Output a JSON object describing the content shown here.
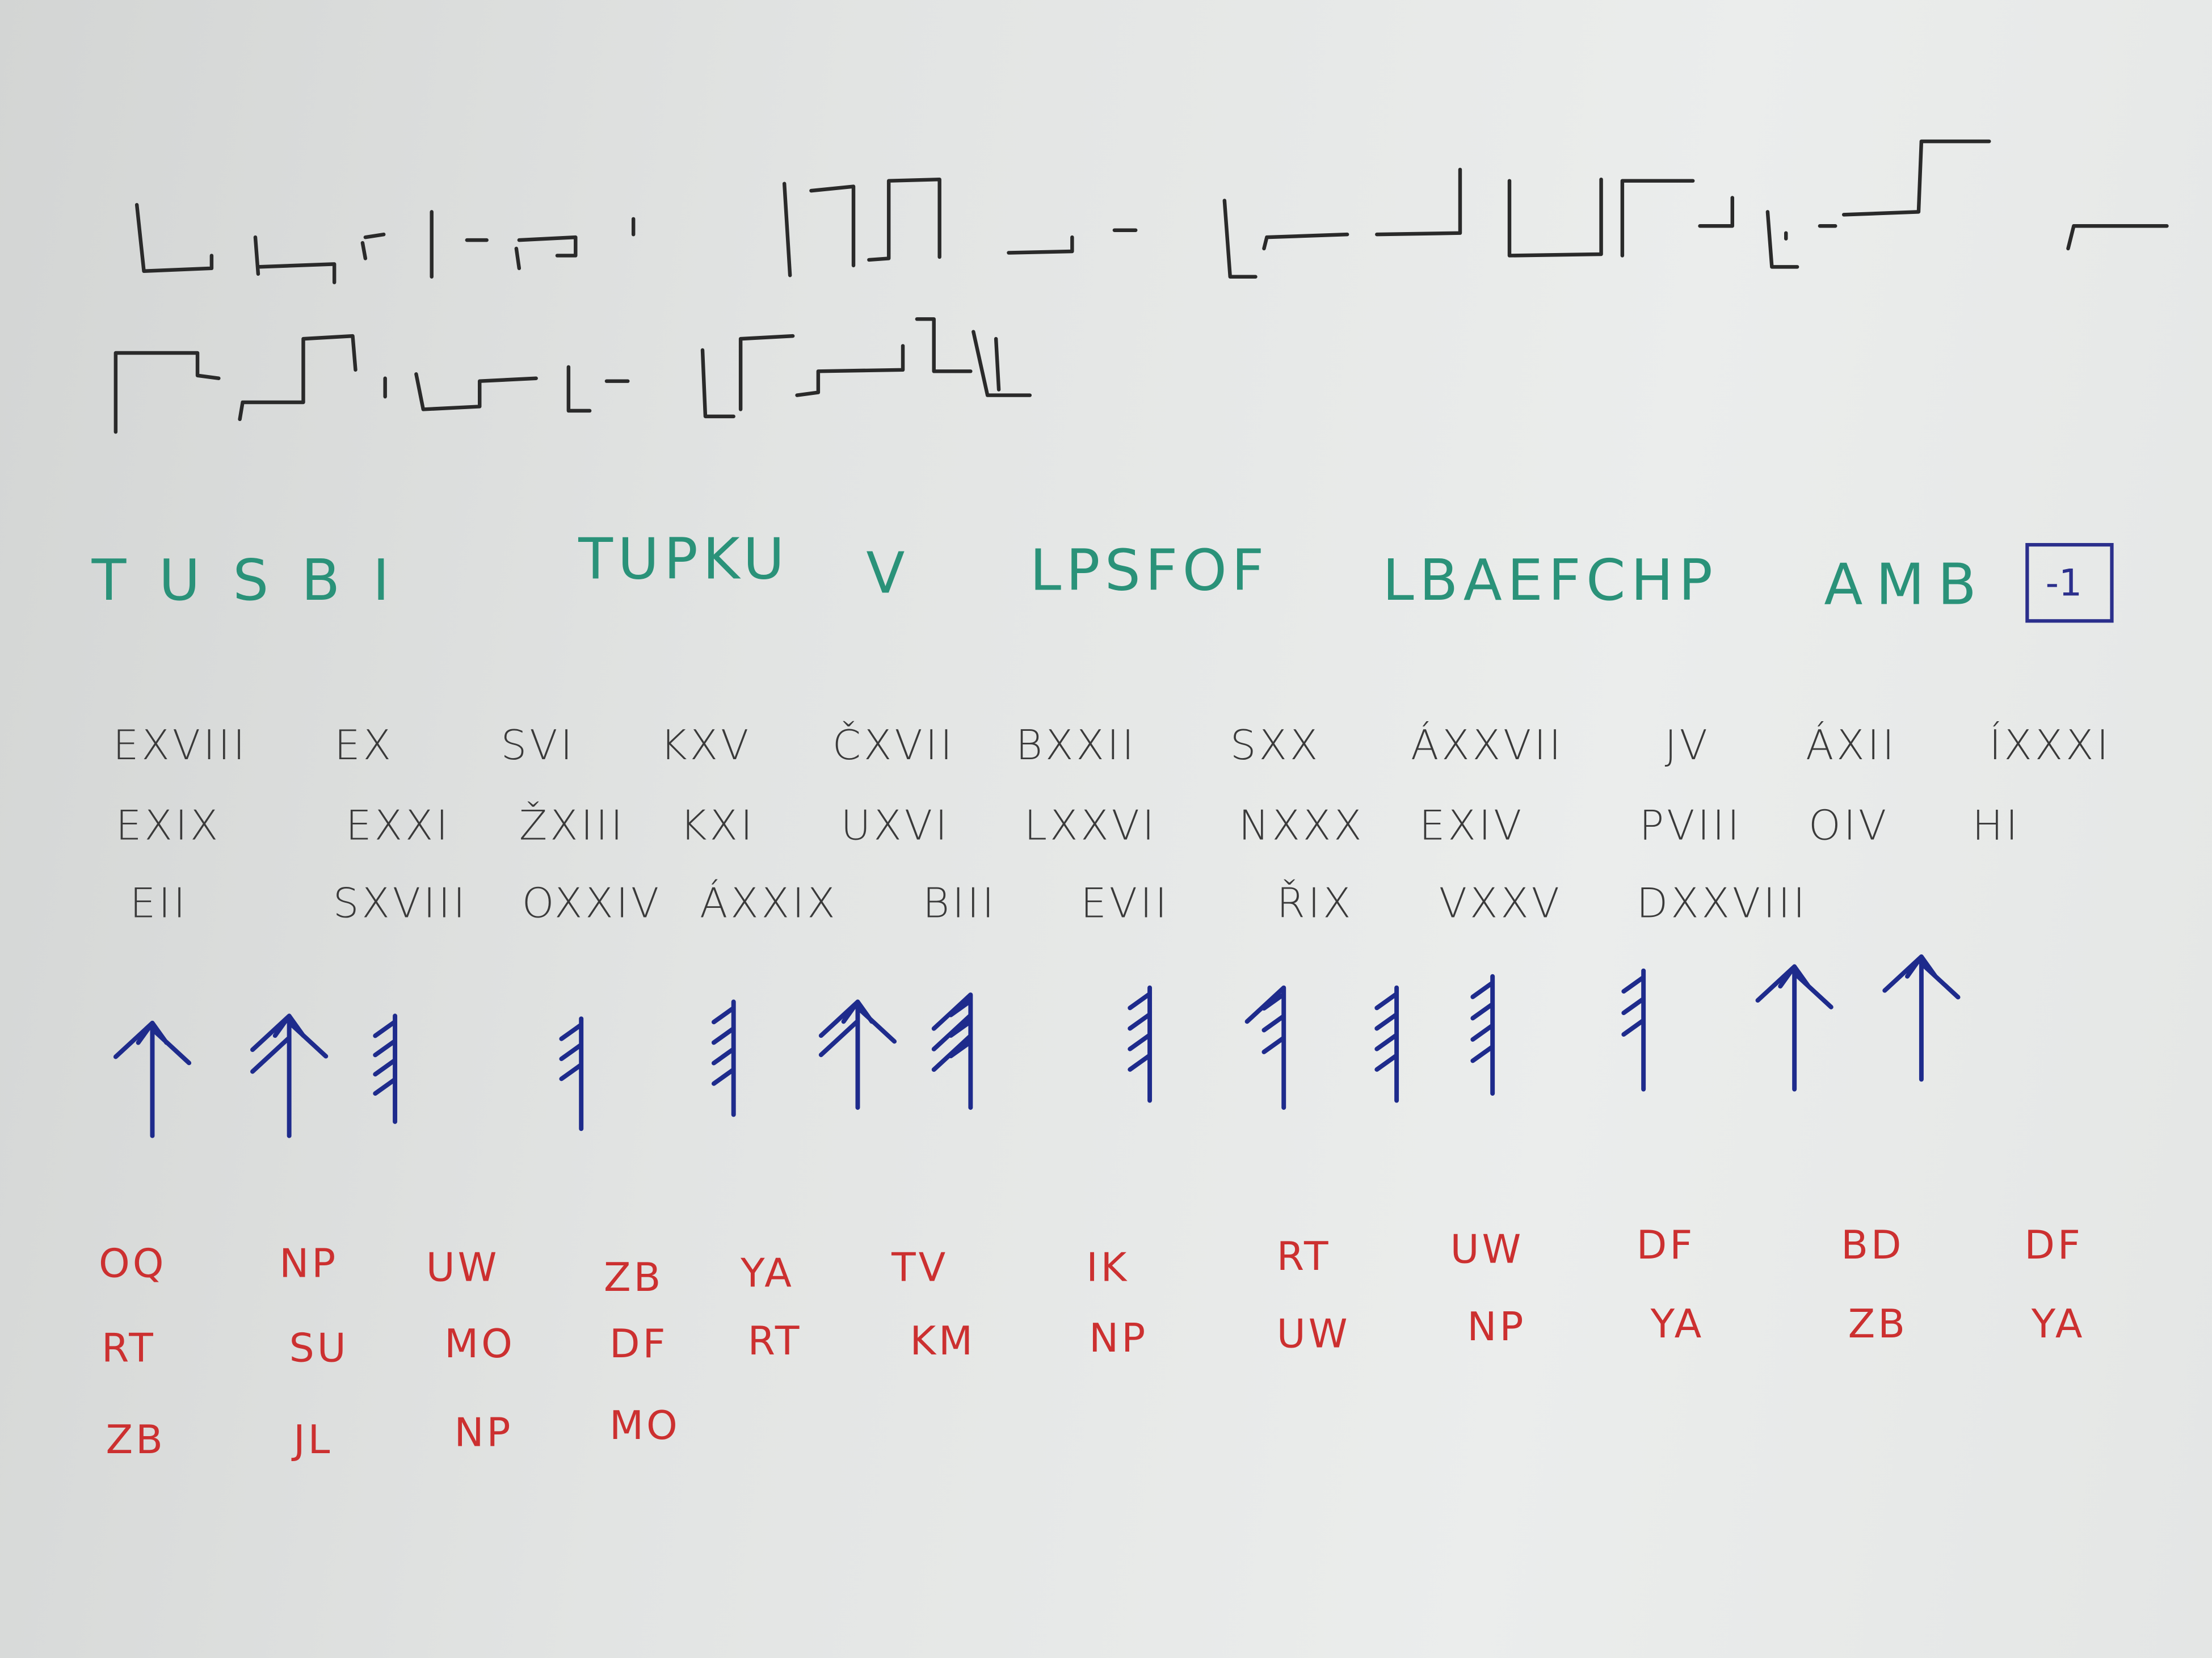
{
  "colors": {
    "paper": "#e6e8e7",
    "symbol_ink": "#2a2a2a",
    "green_ink": "#2a9279",
    "black_ink": "#3a3a3a",
    "blue_ink": "#1e2b8c",
    "red_ink": "#cc3030"
  },
  "green_cipher": {
    "words": [
      "TUSBI",
      "TUPKU",
      "V",
      "LPSFOF",
      "LBAEFCHP",
      "AMB"
    ],
    "key_box": "-1"
  },
  "roman_cipher": {
    "rows": [
      [
        "EXVIII",
        "EX",
        "SVI",
        "KXV",
        "ČXVII",
        "BXXII",
        "SXX",
        "ÁXXVII",
        "JV",
        "ÁXII",
        "ÍXXXI"
      ],
      [
        "EXIX",
        "EXXI",
        "ŽXIII",
        "KXI",
        "UXVI",
        "LXXVI",
        "NXXX",
        "EXIV",
        "PVIII",
        "OIV",
        "HI"
      ],
      [
        "EII",
        "SXVIII",
        "OXXIV",
        "ÁXXIX",
        "BIII",
        "EVII",
        "ŘIX",
        "VXXV",
        "DXXVIII"
      ]
    ]
  },
  "red_cipher": {
    "rows": [
      [
        "OQ",
        "NP",
        "UW",
        "ZB",
        "YA",
        "TV",
        "IK",
        "RT",
        "UW",
        "DF",
        "BD",
        "DF"
      ],
      [
        "RT",
        "SU",
        "MO",
        "DF",
        "RT",
        "KM",
        "NP",
        "UW",
        "NP",
        "YA",
        "ZB",
        "YA"
      ],
      [
        "ZB",
        "JL",
        "NP",
        "MO"
      ]
    ]
  }
}
